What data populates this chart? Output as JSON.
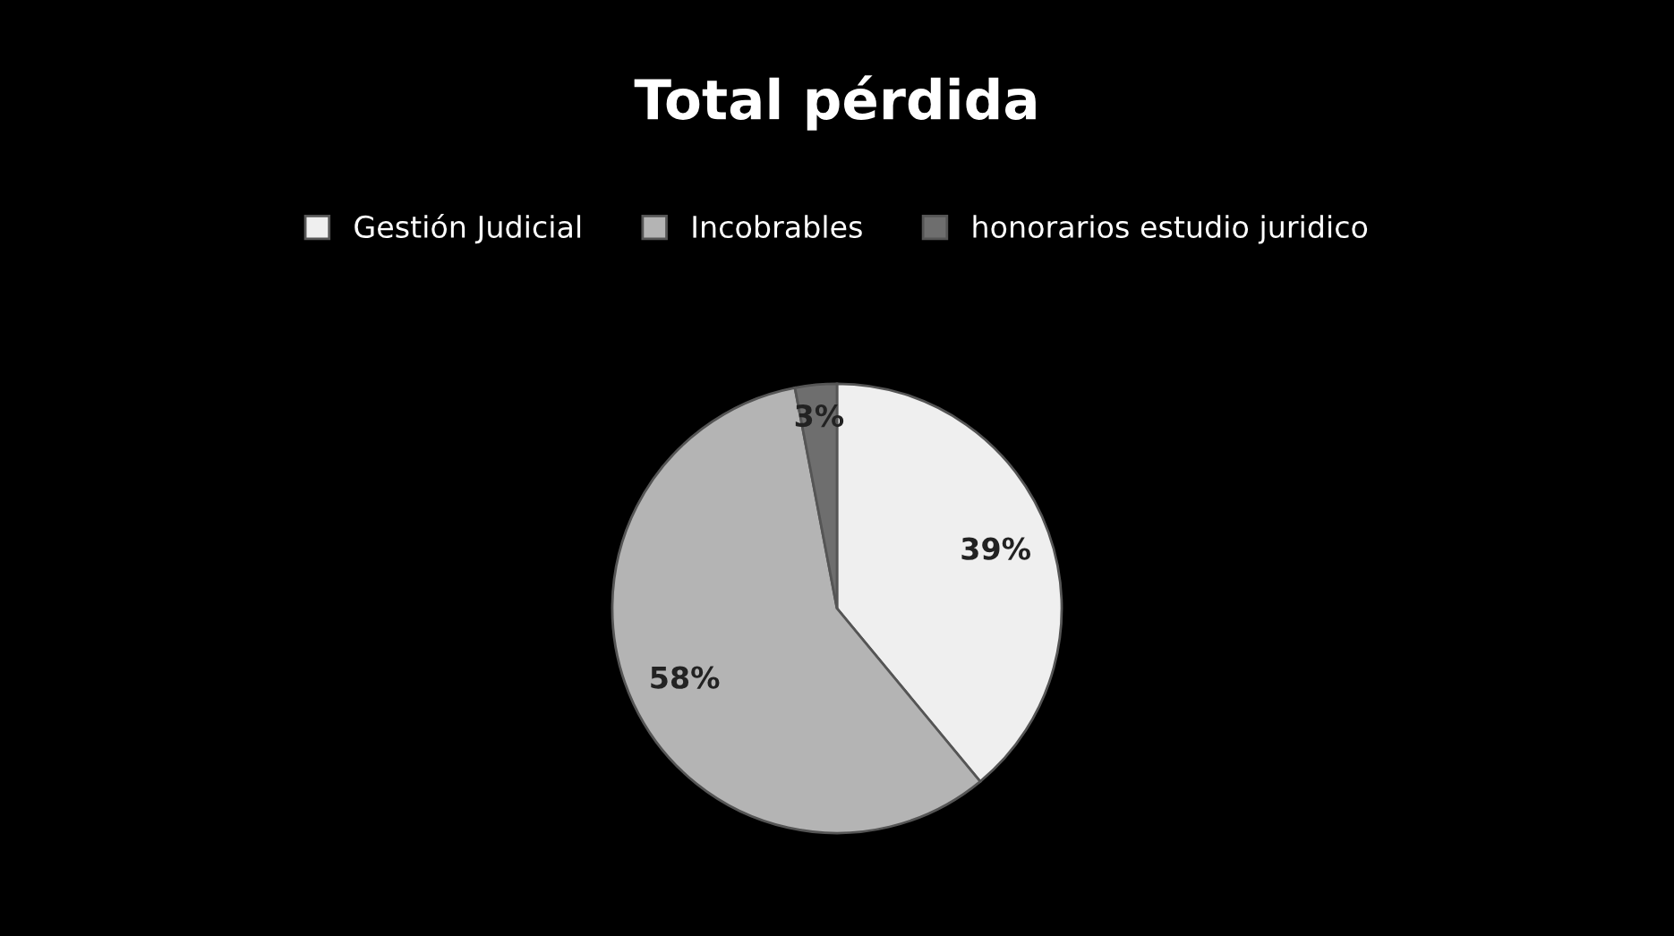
{
  "chart_data": {
    "type": "pie",
    "title": "Total pérdida",
    "categories": [
      "Gestión Judicial",
      "Incobrables",
      "honorarios estudio juridico"
    ],
    "values": [
      39,
      58,
      3
    ],
    "colors": [
      "#efefef",
      "#b4b4b4",
      "#6e6e6e"
    ],
    "value_labels": [
      "39%",
      "58%",
      "3%"
    ],
    "legend": "top"
  }
}
